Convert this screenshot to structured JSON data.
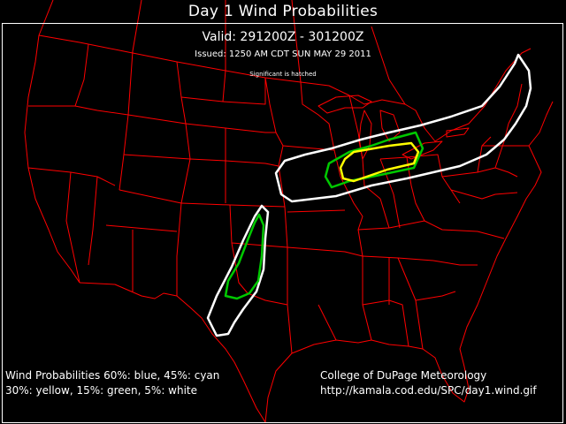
{
  "title": "Day 1 Wind Probabilities",
  "valid": "Valid: 291200Z - 301200Z",
  "issued": "Issued: 1250 AM CDT SUN MAY 29 2011",
  "hatch_note": "Significant is hatched",
  "legend": {
    "line1": "Wind Probabilities 60%: blue, 45%: cyan",
    "line2": "30%: yellow, 15%: green, 5%: white"
  },
  "credit": {
    "line1": "College of DuPage Meteorology",
    "line2": "http://kamala.cod.edu/SPC/day1.wind.gif"
  },
  "colors": {
    "background": "#000000",
    "boundaries": "#ff0000",
    "prob_5": "#ffffff",
    "prob_15": "#00c800",
    "prob_30": "#ffff00"
  },
  "risk_areas": [
    {
      "category": "5%",
      "region": "Upper Midwest to Northeast"
    },
    {
      "category": "15%",
      "region": "Great Lakes"
    },
    {
      "category": "30%",
      "region": "Southern Michigan"
    },
    {
      "category": "5%",
      "region": "Southern Plains"
    },
    {
      "category": "15%",
      "region": "Southern Plains"
    }
  ]
}
